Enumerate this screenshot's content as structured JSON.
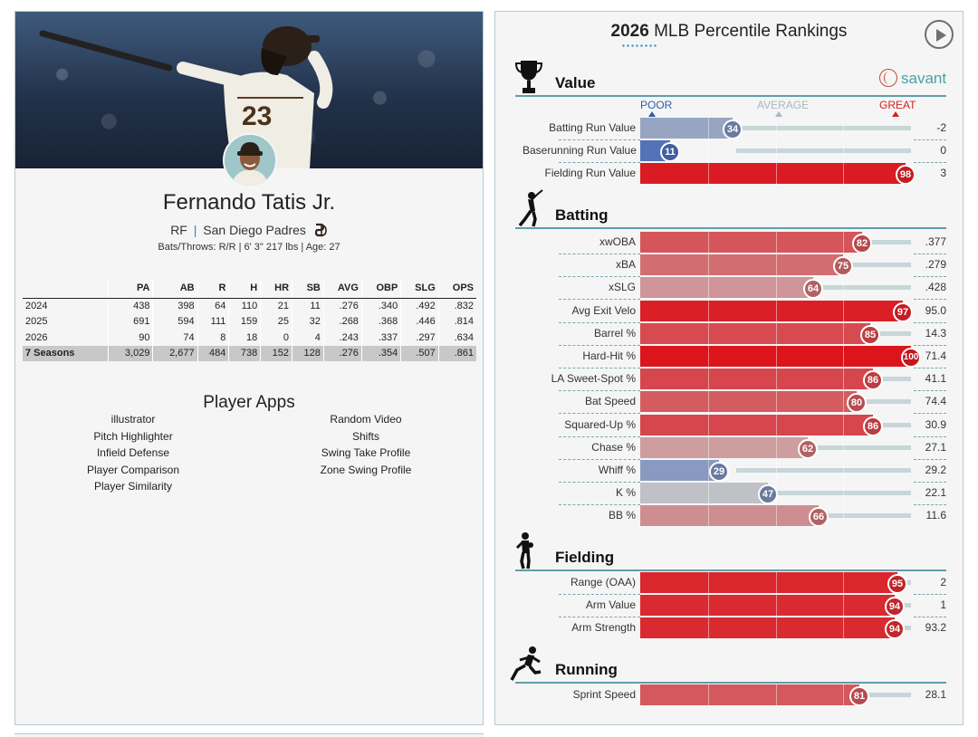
{
  "player": {
    "name": "Fernando Tatis Jr.",
    "position": "RF",
    "separator": "|",
    "team": "San Diego Padres",
    "bio": "Bats/Throws: R/R | 6' 3\" 217 lbs | Age: 27"
  },
  "stats": {
    "columns": [
      "",
      "PA",
      "AB",
      "R",
      "H",
      "HR",
      "SB",
      "AVG",
      "OBP",
      "SLG",
      "OPS"
    ],
    "rows": [
      [
        "2024",
        "438",
        "398",
        "64",
        "110",
        "21",
        "11",
        ".276",
        ".340",
        ".492",
        ".832"
      ],
      [
        "2025",
        "691",
        "594",
        "111",
        "159",
        "25",
        "32",
        ".268",
        ".368",
        ".446",
        ".814"
      ],
      [
        "2026",
        "90",
        "74",
        "8",
        "18",
        "0",
        "4",
        ".243",
        ".337",
        ".297",
        ".634"
      ]
    ],
    "total": [
      "7 Seasons",
      "3,029",
      "2,677",
      "484",
      "738",
      "152",
      "128",
      ".276",
      ".354",
      ".507",
      ".861"
    ]
  },
  "apps": {
    "title": "Player Apps",
    "col1": [
      "illustrator",
      "Pitch Highlighter",
      "Infield Defense",
      "Player Comparison",
      "Player Similarity"
    ],
    "col2": [
      "Random Video",
      "Shifts",
      "Swing Take Profile",
      "Zone Swing Profile"
    ]
  },
  "rankings": {
    "year": "2026",
    "title": "MLB Percentile Rankings",
    "brand": "savant",
    "scale": {
      "poor": "POOR",
      "average": "AVERAGE",
      "great": "GREAT"
    },
    "sections": [
      {
        "name": "Value",
        "icon": "trophy-icon",
        "metrics": [
          {
            "label": "Batting Run Value",
            "pct": 34,
            "value": "-2"
          },
          {
            "label": "Baserunning Run Value",
            "pct": 11,
            "value": "0"
          },
          {
            "label": "Fielding Run Value",
            "pct": 98,
            "value": "3"
          }
        ]
      },
      {
        "name": "Batting",
        "icon": "batter-icon",
        "metrics": [
          {
            "label": "xwOBA",
            "pct": 82,
            "value": ".377"
          },
          {
            "label": "xBA",
            "pct": 75,
            "value": ".279"
          },
          {
            "label": "xSLG",
            "pct": 64,
            "value": ".428"
          },
          {
            "label": "Avg Exit Velo",
            "pct": 97,
            "value": "95.0"
          },
          {
            "label": "Barrel %",
            "pct": 85,
            "value": "14.3"
          },
          {
            "label": "Hard-Hit %",
            "pct": 100,
            "value": "71.4"
          },
          {
            "label": "LA Sweet-Spot %",
            "pct": 86,
            "value": "41.1"
          },
          {
            "label": "Bat Speed",
            "pct": 80,
            "value": "74.4"
          },
          {
            "label": "Squared-Up %",
            "pct": 86,
            "value": "30.9"
          },
          {
            "label": "Chase %",
            "pct": 62,
            "value": "27.1"
          },
          {
            "label": "Whiff %",
            "pct": 29,
            "value": "29.2"
          },
          {
            "label": "K %",
            "pct": 47,
            "value": "22.1"
          },
          {
            "label": "BB %",
            "pct": 66,
            "value": "11.6"
          }
        ]
      },
      {
        "name": "Fielding",
        "icon": "fielder-icon",
        "metrics": [
          {
            "label": "Range (OAA)",
            "pct": 95,
            "value": "2"
          },
          {
            "label": "Arm Value",
            "pct": 94,
            "value": "1"
          },
          {
            "label": "Arm Strength",
            "pct": 94,
            "value": "93.2"
          }
        ]
      },
      {
        "name": "Running",
        "icon": "runner-icon",
        "metrics": [
          {
            "label": "Sprint Speed",
            "pct": 81,
            "value": "28.1"
          }
        ]
      }
    ]
  }
}
